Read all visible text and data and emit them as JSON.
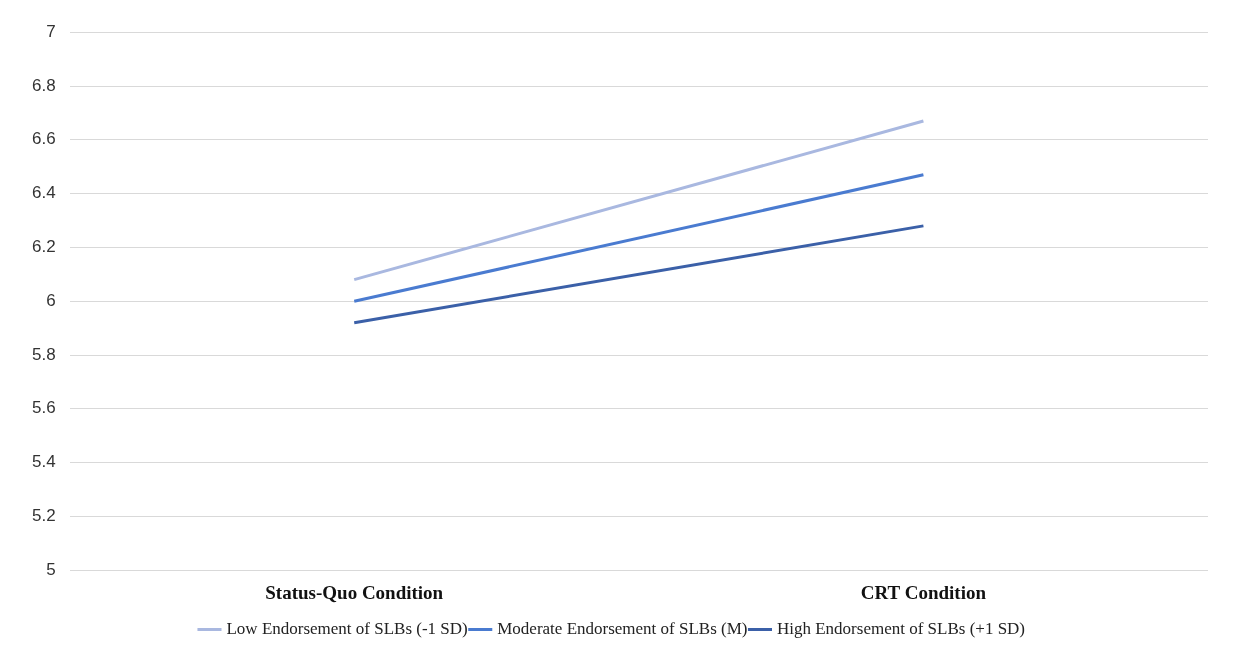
{
  "chart_data": {
    "type": "line",
    "categories": [
      "Status-Quo Condition",
      "CRT Condition"
    ],
    "series": [
      {
        "name": "Low Endorsement of SLBs (-1 SD)",
        "color": "#a9b8e0",
        "values": [
          6.08,
          6.67
        ]
      },
      {
        "name": "Moderate Endorsement of SLBs (M)",
        "color": "#4a7bd0",
        "values": [
          6.0,
          6.47
        ]
      },
      {
        "name": "High Endorsement of SLBs (+1 SD)",
        "color": "#3b60a8",
        "values": [
          5.92,
          6.28
        ]
      }
    ],
    "ylim": [
      5,
      7
    ],
    "yticks": [
      5,
      5.2,
      5.4,
      5.6,
      5.8,
      6,
      6.2,
      6.4,
      6.6,
      6.8,
      7
    ],
    "grid": "y",
    "legend": "bottom",
    "marker": "none",
    "line_style": "solid"
  }
}
